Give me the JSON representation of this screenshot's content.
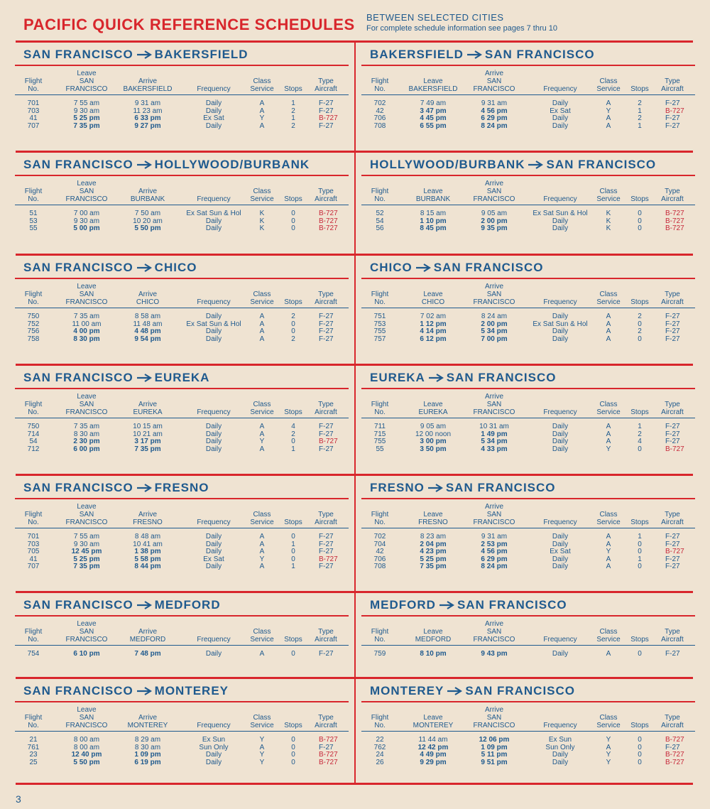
{
  "header": {
    "title": "PACIFIC QUICK REFERENCE SCHEDULES",
    "subtitle": "BETWEEN SELECTED CITIES",
    "note": "For complete schedule information see pages 7 thru 10"
  },
  "columns": [
    "Flight No.",
    "Leave",
    "Arrive",
    "Frequency",
    "Class Service",
    "Stops",
    "Type Aircraft"
  ],
  "tables": [
    {
      "from": "SAN FRANCISCO",
      "to": "BAKERSFIELD",
      "leave_city": "SAN FRANCISCO",
      "arrive_city": "BAKERSFIELD",
      "rows": [
        [
          "701",
          "7 55 am",
          "9 31 am",
          "Daily",
          "A",
          "1",
          "F-27"
        ],
        [
          "703",
          "9 30 am",
          "11 23 am",
          "Daily",
          "A",
          "2",
          "F-27"
        ],
        [
          "41",
          "5 25 pm",
          "6 33 pm",
          "Ex Sat",
          "Y",
          "1",
          "B-727"
        ],
        [
          "707",
          "7 35 pm",
          "9 27 pm",
          "Daily",
          "A",
          "2",
          "F-27"
        ]
      ]
    },
    {
      "from": "BAKERSFIELD",
      "to": "SAN FRANCISCO",
      "leave_city": "BAKERSFIELD",
      "arrive_city": "SAN FRANCISCO",
      "rows": [
        [
          "702",
          "7 49 am",
          "9 31 am",
          "Daily",
          "A",
          "2",
          "F-27"
        ],
        [
          "42",
          "3 47 pm",
          "4 56 pm",
          "Ex Sat",
          "Y",
          "1",
          "B-727"
        ],
        [
          "706",
          "4 45 pm",
          "6 29 pm",
          "Daily",
          "A",
          "2",
          "F-27"
        ],
        [
          "708",
          "6 55 pm",
          "8 24 pm",
          "Daily",
          "A",
          "1",
          "F-27"
        ]
      ]
    },
    {
      "from": "SAN FRANCISCO",
      "to": "HOLLYWOOD/BURBANK",
      "leave_city": "SAN FRANCISCO",
      "arrive_city": "BURBANK",
      "rows": [
        [
          "51",
          "7 00 am",
          "7 50 am",
          "Ex Sat Sun & Hol",
          "K",
          "0",
          "B-727"
        ],
        [
          "53",
          "9 30 am",
          "10 20 am",
          "Daily",
          "K",
          "0",
          "B-727"
        ],
        [
          "55",
          "5 00 pm",
          "5 50 pm",
          "Daily",
          "K",
          "0",
          "B-727"
        ]
      ]
    },
    {
      "from": "HOLLYWOOD/BURBANK",
      "to": "SAN FRANCISCO",
      "leave_city": "BURBANK",
      "arrive_city": "SAN FRANCISCO",
      "rows": [
        [
          "52",
          "8 15 am",
          "9 05 am",
          "Ex Sat Sun & Hol",
          "K",
          "0",
          "B-727"
        ],
        [
          "54",
          "1 10 pm",
          "2 00 pm",
          "Daily",
          "K",
          "0",
          "B-727"
        ],
        [
          "56",
          "8 45 pm",
          "9 35 pm",
          "Daily",
          "K",
          "0",
          "B-727"
        ]
      ]
    },
    {
      "from": "SAN FRANCISCO",
      "to": "CHICO",
      "leave_city": "SAN FRANCISCO",
      "arrive_city": "CHICO",
      "rows": [
        [
          "750",
          "7 35 am",
          "8 58 am",
          "Daily",
          "A",
          "2",
          "F-27"
        ],
        [
          "752",
          "11 00 am",
          "11 48 am",
          "Ex Sat Sun & Hol",
          "A",
          "0",
          "F-27"
        ],
        [
          "756",
          "4 00 pm",
          "4 48 pm",
          "Daily",
          "A",
          "0",
          "F-27"
        ],
        [
          "758",
          "8 30 pm",
          "9 54 pm",
          "Daily",
          "A",
          "2",
          "F-27"
        ]
      ]
    },
    {
      "from": "CHICO",
      "to": "SAN FRANCISCO",
      "leave_city": "CHICO",
      "arrive_city": "SAN FRANCISCO",
      "rows": [
        [
          "751",
          "7 02 am",
          "8 24 am",
          "Daily",
          "A",
          "2",
          "F-27"
        ],
        [
          "753",
          "1 12 pm",
          "2 00 pm",
          "Ex Sat Sun & Hol",
          "A",
          "0",
          "F-27"
        ],
        [
          "755",
          "4 14 pm",
          "5 34 pm",
          "Daily",
          "A",
          "2",
          "F-27"
        ],
        [
          "757",
          "6 12 pm",
          "7 00 pm",
          "Daily",
          "A",
          "0",
          "F-27"
        ]
      ]
    },
    {
      "from": "SAN FRANCISCO",
      "to": "EUREKA",
      "leave_city": "SAN FRANCISCO",
      "arrive_city": "EUREKA",
      "rows": [
        [
          "750",
          "7 35 am",
          "10 15 am",
          "Daily",
          "A",
          "4",
          "F-27"
        ],
        [
          "714",
          "8 30 am",
          "10 21 am",
          "Daily",
          "A",
          "2",
          "F-27"
        ],
        [
          "54",
          "2 30 pm",
          "3 17 pm",
          "Daily",
          "Y",
          "0",
          "B-727"
        ],
        [
          "712",
          "6 00 pm",
          "7 35 pm",
          "Daily",
          "A",
          "1",
          "F-27"
        ]
      ]
    },
    {
      "from": "EUREKA",
      "to": "SAN FRANCISCO",
      "leave_city": "EUREKA",
      "arrive_city": "SAN FRANCISCO",
      "rows": [
        [
          "711",
          "9 05 am",
          "10 31 am",
          "Daily",
          "A",
          "1",
          "F-27"
        ],
        [
          "715",
          "12 00 noon",
          "1 49 pm",
          "Daily",
          "A",
          "2",
          "F-27"
        ],
        [
          "755",
          "3 00 pm",
          "5 34 pm",
          "Daily",
          "A",
          "4",
          "F-27"
        ],
        [
          "55",
          "3 50 pm",
          "4 33 pm",
          "Daily",
          "Y",
          "0",
          "B-727"
        ]
      ]
    },
    {
      "from": "SAN FRANCISCO",
      "to": "FRESNO",
      "leave_city": "SAN FRANCISCO",
      "arrive_city": "FRESNO",
      "rows": [
        [
          "701",
          "7 55 am",
          "8 48 am",
          "Daily",
          "A",
          "0",
          "F-27"
        ],
        [
          "703",
          "9 30 am",
          "10 41 am",
          "Daily",
          "A",
          "1",
          "F-27"
        ],
        [
          "705",
          "12 45 pm",
          "1 38 pm",
          "Daily",
          "A",
          "0",
          "F-27"
        ],
        [
          "41",
          "5 25 pm",
          "5 58 pm",
          "Ex Sat",
          "Y",
          "0",
          "B-727"
        ],
        [
          "707",
          "7 35 pm",
          "8 44 pm",
          "Daily",
          "A",
          "1",
          "F-27"
        ]
      ]
    },
    {
      "from": "FRESNO",
      "to": "SAN FRANCISCO",
      "leave_city": "FRESNO",
      "arrive_city": "SAN FRANCISCO",
      "rows": [
        [
          "702",
          "8 23 am",
          "9 31 am",
          "Daily",
          "A",
          "1",
          "F-27"
        ],
        [
          "704",
          "2 04 pm",
          "2 53 pm",
          "Daily",
          "A",
          "0",
          "F-27"
        ],
        [
          "42",
          "4 23 pm",
          "4 56 pm",
          "Ex Sat",
          "Y",
          "0",
          "B-727"
        ],
        [
          "706",
          "5 25 pm",
          "6 29 pm",
          "Daily",
          "A",
          "1",
          "F-27"
        ],
        [
          "708",
          "7 35 pm",
          "8 24 pm",
          "Daily",
          "A",
          "0",
          "F-27"
        ]
      ]
    },
    {
      "from": "SAN FRANCISCO",
      "to": "MEDFORD",
      "leave_city": "SAN FRANCISCO",
      "arrive_city": "MEDFORD",
      "rows": [
        [
          "754",
          "6 10 pm",
          "7 48 pm",
          "Daily",
          "A",
          "0",
          "F-27"
        ]
      ]
    },
    {
      "from": "MEDFORD",
      "to": "SAN FRANCISCO",
      "leave_city": "MEDFORD",
      "arrive_city": "SAN FRANCISCO",
      "rows": [
        [
          "759",
          "8 10 pm",
          "9 43 pm",
          "Daily",
          "A",
          "0",
          "F-27"
        ]
      ]
    },
    {
      "from": "SAN FRANCISCO",
      "to": "MONTEREY",
      "leave_city": "SAN FRANCISCO",
      "arrive_city": "MONTEREY",
      "rows": [
        [
          "21",
          "8 00 am",
          "8 29 am",
          "Ex Sun",
          "Y",
          "0",
          "B-727"
        ],
        [
          "761",
          "8 00 am",
          "8 30 am",
          "Sun Only",
          "A",
          "0",
          "F-27"
        ],
        [
          "23",
          "12 40 pm",
          "1 09 pm",
          "Daily",
          "Y",
          "0",
          "B-727"
        ],
        [
          "25",
          "5 50 pm",
          "6 19 pm",
          "Daily",
          "Y",
          "0",
          "B-727"
        ]
      ]
    },
    {
      "from": "MONTEREY",
      "to": "SAN FRANCISCO",
      "leave_city": "MONTEREY",
      "arrive_city": "SAN FRANCISCO",
      "rows": [
        [
          "22",
          "11 44 am",
          "12 06 pm",
          "Ex Sun",
          "Y",
          "0",
          "B-727"
        ],
        [
          "762",
          "12 42 pm",
          "1 09 pm",
          "Sun Only",
          "A",
          "0",
          "F-27"
        ],
        [
          "24",
          "4 49 pm",
          "5 11 pm",
          "Daily",
          "Y",
          "0",
          "B-727"
        ],
        [
          "26",
          "9 29 pm",
          "9 51 pm",
          "Daily",
          "Y",
          "0",
          "B-727"
        ]
      ]
    }
  ],
  "page_number": "3"
}
